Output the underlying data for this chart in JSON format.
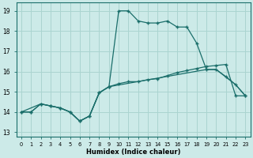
{
  "xlabel": "Humidex (Indice chaleur)",
  "bg_color": "#cceae8",
  "grid_color": "#aad4d0",
  "line_color": "#1a6e6a",
  "xlim": [
    -0.5,
    23.5
  ],
  "ylim": [
    12.8,
    19.4
  ],
  "yticks": [
    13,
    14,
    15,
    16,
    17,
    18,
    19
  ],
  "xticks": [
    0,
    1,
    2,
    3,
    4,
    5,
    6,
    7,
    8,
    9,
    10,
    11,
    12,
    13,
    14,
    15,
    16,
    17,
    18,
    19,
    20,
    21,
    22,
    23
  ],
  "line1_x": [
    0,
    1,
    2,
    3,
    4,
    5,
    6,
    7,
    8,
    9,
    10,
    11,
    12,
    13,
    14,
    15,
    16,
    17,
    18,
    19,
    20,
    21,
    22,
    23
  ],
  "line1_y": [
    14.0,
    14.0,
    14.4,
    14.3,
    14.2,
    14.0,
    13.55,
    13.8,
    14.95,
    15.25,
    15.4,
    15.5,
    15.5,
    15.6,
    15.65,
    15.8,
    15.95,
    16.05,
    16.15,
    16.25,
    16.3,
    16.35,
    14.8,
    14.8
  ],
  "line2_x": [
    0,
    1,
    2,
    3,
    4,
    5,
    6,
    7,
    8,
    9,
    10,
    11,
    12,
    13,
    14,
    15,
    16,
    17,
    18,
    19,
    20,
    21,
    22,
    23
  ],
  "line2_y": [
    14.0,
    14.0,
    14.4,
    14.3,
    14.2,
    14.0,
    13.55,
    13.8,
    14.95,
    15.25,
    19.0,
    19.0,
    18.5,
    18.4,
    18.4,
    18.5,
    18.2,
    18.2,
    17.4,
    16.1,
    16.1,
    15.75,
    15.35,
    14.8
  ],
  "line3_x": [
    0,
    2,
    3,
    4,
    5,
    6,
    7,
    8,
    9,
    19,
    20,
    22,
    23
  ],
  "line3_y": [
    14.0,
    14.4,
    14.3,
    14.2,
    14.0,
    13.55,
    13.8,
    14.95,
    15.25,
    16.1,
    16.1,
    15.35,
    14.8
  ]
}
